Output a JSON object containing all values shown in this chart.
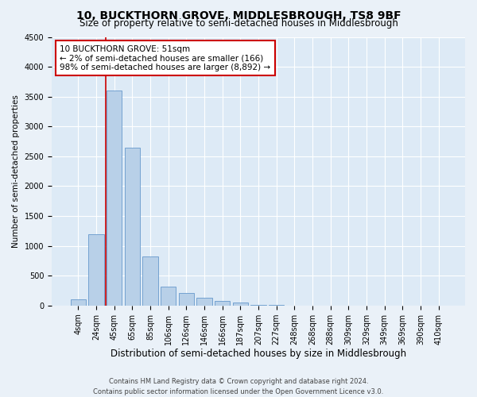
{
  "title": "10, BUCKTHORN GROVE, MIDDLESBROUGH, TS8 9BF",
  "subtitle": "Size of property relative to semi-detached houses in Middlesbrough",
  "xlabel": "Distribution of semi-detached houses by size in Middlesbrough",
  "ylabel": "Number of semi-detached properties",
  "categories": [
    "4sqm",
    "24sqm",
    "45sqm",
    "65sqm",
    "85sqm",
    "106sqm",
    "126sqm",
    "146sqm",
    "166sqm",
    "187sqm",
    "207sqm",
    "227sqm",
    "248sqm",
    "268sqm",
    "288sqm",
    "309sqm",
    "329sqm",
    "349sqm",
    "369sqm",
    "390sqm",
    "410sqm"
  ],
  "values": [
    100,
    1200,
    3600,
    2650,
    820,
    320,
    215,
    130,
    80,
    50,
    15,
    5,
    0,
    0,
    0,
    0,
    0,
    0,
    0,
    0,
    0
  ],
  "bar_color": "#b8d0e8",
  "bar_edge_color": "#6699cc",
  "vline_x": 1.55,
  "vline_color": "#cc0000",
  "annotation_text": "10 BUCKTHORN GROVE: 51sqm\n← 2% of semi-detached houses are smaller (166)\n98% of semi-detached houses are larger (8,892) →",
  "annotation_box_edge": "#cc0000",
  "ylim": [
    0,
    4500
  ],
  "yticks": [
    0,
    500,
    1000,
    1500,
    2000,
    2500,
    3000,
    3500,
    4000,
    4500
  ],
  "footer1": "Contains HM Land Registry data © Crown copyright and database right 2024.",
  "footer2": "Contains public sector information licensed under the Open Government Licence v3.0.",
  "bg_color": "#eaf1f8",
  "plot_bg_color": "#ddeaf6",
  "title_fontsize": 10,
  "subtitle_fontsize": 8.5,
  "xlabel_fontsize": 8.5,
  "ylabel_fontsize": 7.5,
  "tick_fontsize": 7,
  "annotation_fontsize": 7.5,
  "footer_fontsize": 6.0
}
